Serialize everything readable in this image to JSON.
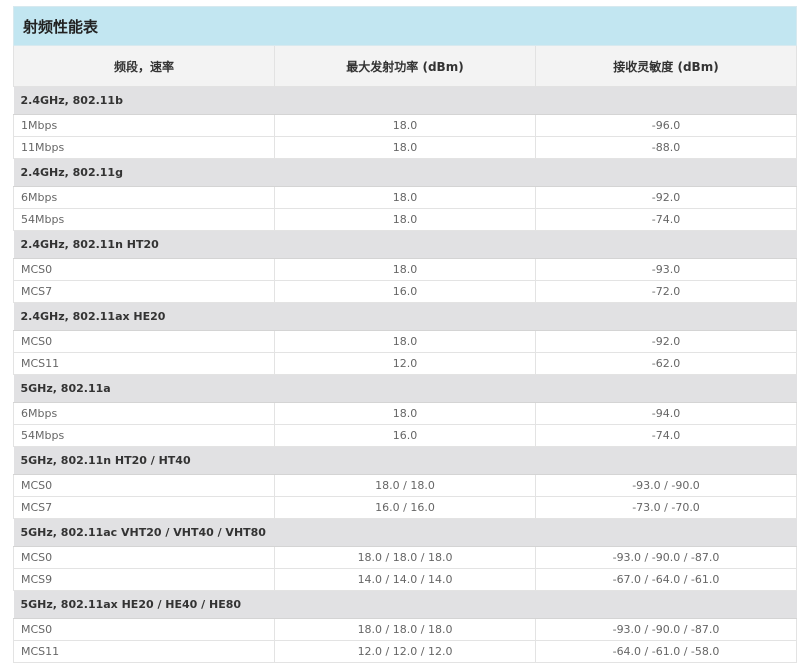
{
  "title": "射频性能表",
  "headers": [
    "频段，速率",
    "最大发射功率 (dBm)",
    "接收灵敏度 (dBm)"
  ],
  "groups": [
    {
      "name": "2.4GHz, 802.11b",
      "rows": [
        [
          "1Mbps",
          "18.0",
          "-96.0"
        ],
        [
          "11Mbps",
          "18.0",
          "-88.0"
        ]
      ]
    },
    {
      "name": "2.4GHz, 802.11g",
      "rows": [
        [
          "6Mbps",
          "18.0",
          "-92.0"
        ],
        [
          "54Mbps",
          "18.0",
          "-74.0"
        ]
      ]
    },
    {
      "name": "2.4GHz, 802.11n HT20",
      "rows": [
        [
          "MCS0",
          "18.0",
          "-93.0"
        ],
        [
          "MCS7",
          "16.0",
          "-72.0"
        ]
      ]
    },
    {
      "name": "2.4GHz, 802.11ax HE20",
      "rows": [
        [
          "MCS0",
          "18.0",
          "-92.0"
        ],
        [
          "MCS11",
          "12.0",
          "-62.0"
        ]
      ]
    },
    {
      "name": "5GHz, 802.11a",
      "rows": [
        [
          "6Mbps",
          "18.0",
          "-94.0"
        ],
        [
          "54Mbps",
          "16.0",
          "-74.0"
        ]
      ]
    },
    {
      "name": "5GHz, 802.11n HT20 / HT40",
      "rows": [
        [
          "MCS0",
          "18.0 / 18.0",
          "-93.0 / -90.0"
        ],
        [
          "MCS7",
          "16.0 / 16.0",
          "-73.0 / -70.0"
        ]
      ]
    },
    {
      "name": "5GHz, 802.11ac VHT20 / VHT40 / VHT80",
      "rows": [
        [
          "MCS0",
          "18.0 / 18.0 / 18.0",
          "-93.0 / -90.0 / -87.0"
        ],
        [
          "MCS9",
          "14.0 / 14.0 / 14.0",
          "-67.0 / -64.0 / -61.0"
        ]
      ]
    },
    {
      "name": "5GHz, 802.11ax HE20 / HE40 / HE80",
      "rows": [
        [
          "MCS0",
          "18.0 / 18.0 / 18.0",
          "-93.0 / -90.0 / -87.0"
        ],
        [
          "MCS11",
          "12.0 / 12.0 / 12.0",
          "-64.0 / -61.0 / -58.0"
        ]
      ]
    }
  ]
}
